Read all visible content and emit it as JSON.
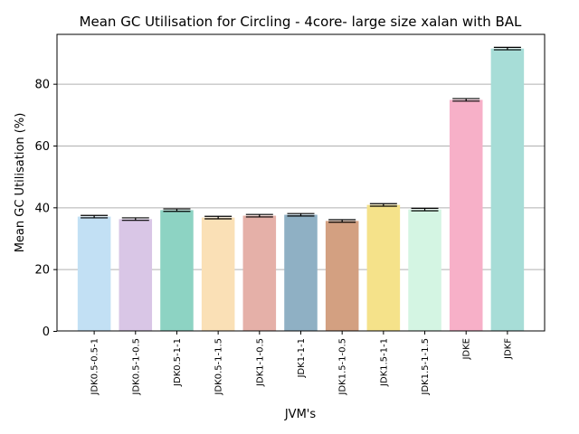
{
  "chart_data": {
    "type": "bar",
    "title": "Mean GC Utilisation for Circling - 4core- large size xalan with BAL",
    "xlabel": "JVM's",
    "ylabel": "Mean GC Utilisation (%)",
    "ylim": [
      0,
      96
    ],
    "yticks": [
      0,
      20,
      40,
      60,
      80
    ],
    "grid": "horizontal",
    "categories": [
      "JDK0.5-0.5-1",
      "JDK0.5-1-0.5",
      "JDK0.5-1-1",
      "JDK0.5-1-1.5",
      "JDK1-1-0.5",
      "JDK1-1-1",
      "JDK1.5-1-0.5",
      "JDK1.5-1-1",
      "JDK1.5-1-1.5",
      "JDKE",
      "JDKF"
    ],
    "values": [
      37.0,
      36.2,
      39.1,
      36.7,
      37.3,
      37.6,
      35.6,
      40.8,
      39.3,
      74.8,
      91.4
    ],
    "errors": [
      0.4,
      0.4,
      0.4,
      0.4,
      0.4,
      0.4,
      0.4,
      0.4,
      0.4,
      0.4,
      0.4
    ],
    "colors": [
      "#c2e0f4",
      "#d9c6e6",
      "#8dd3c3",
      "#fae0b6",
      "#e5b0a8",
      "#8fb0c4",
      "#d3a081",
      "#f5e28a",
      "#d4f5e3",
      "#f7b0c8",
      "#a7ddd7"
    ]
  }
}
